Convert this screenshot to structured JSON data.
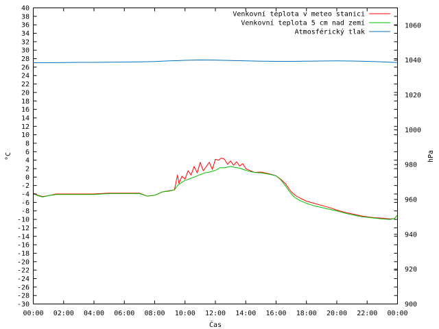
{
  "chart_data": {
    "type": "line",
    "xlabel": "Čas",
    "ylabel_left": "°C",
    "ylabel_right": "hPa",
    "x_ticks": [
      "00:00",
      "02:00",
      "04:00",
      "06:00",
      "08:00",
      "10:00",
      "12:00",
      "14:00",
      "16:00",
      "18:00",
      "20:00",
      "22:00",
      "00:00"
    ],
    "xlim_hours": [
      0,
      24
    ],
    "ylim_left": [
      -30,
      40
    ],
    "ylim_right": [
      900,
      1070
    ],
    "left_ticks": [
      40,
      38,
      36,
      34,
      32,
      30,
      28,
      26,
      24,
      22,
      20,
      18,
      16,
      14,
      12,
      10,
      8,
      6,
      4,
      2,
      0,
      -2,
      -4,
      -6,
      -8,
      -10,
      -12,
      -14,
      -16,
      -18,
      -20,
      -22,
      -24,
      -26,
      -28,
      -30
    ],
    "right_ticks": [
      1060,
      1040,
      1020,
      1000,
      980,
      960,
      940,
      920,
      900
    ],
    "legend_position": "top-right",
    "grid": false,
    "series": [
      {
        "name": "Venkovní teplota v meteo stanici",
        "color": "#ff0000",
        "axis": "left",
        "x": [
          0,
          0.3,
          0.6,
          1,
          1.5,
          2,
          3,
          4,
          5,
          6,
          7,
          7.5,
          8,
          8.5,
          9,
          9.3,
          9.5,
          9.6,
          9.8,
          10,
          10.2,
          10.4,
          10.6,
          10.8,
          11,
          11.2,
          11.4,
          11.6,
          11.8,
          12,
          12.2,
          12.4,
          12.6,
          12.8,
          13,
          13.2,
          13.4,
          13.6,
          13.8,
          14,
          14.3,
          14.6,
          15,
          15.5,
          16,
          16.3,
          16.6,
          17,
          17.3,
          17.6,
          18,
          18.5,
          19,
          19.5,
          20,
          20.5,
          21,
          21.5,
          22,
          22.5,
          23,
          23.5,
          23.8,
          24
        ],
        "y": [
          -3.8,
          -4.3,
          -4.6,
          -4.4,
          -4.0,
          -4.0,
          -4.0,
          -4.0,
          -3.8,
          -3.8,
          -3.8,
          -4.5,
          -4.3,
          -3.5,
          -3.2,
          -3.0,
          0.5,
          -1.5,
          0.2,
          -0.5,
          1.5,
          0.5,
          2.5,
          1.0,
          3.5,
          1.5,
          2.5,
          3.5,
          1.8,
          4.2,
          4.0,
          4.5,
          4.2,
          3.0,
          3.8,
          2.8,
          3.6,
          2.6,
          3.2,
          2.0,
          1.5,
          1.1,
          1.2,
          0.8,
          0.3,
          -0.5,
          -1.5,
          -3.5,
          -4.4,
          -5.0,
          -5.7,
          -6.2,
          -6.7,
          -7.2,
          -7.8,
          -8.3,
          -8.7,
          -9.1,
          -9.4,
          -9.6,
          -9.7,
          -9.9,
          -9.8,
          -9.0
        ]
      },
      {
        "name": "Venkovní teplota 5 cm nad zemí",
        "color": "#00c000",
        "axis": "left",
        "x": [
          0,
          0.3,
          0.6,
          1,
          1.5,
          2,
          3,
          4,
          5,
          6,
          7,
          7.5,
          8,
          8.5,
          9,
          9.3,
          9.5,
          9.8,
          10,
          10.3,
          10.6,
          11,
          11.3,
          11.6,
          12,
          12.3,
          12.6,
          13,
          13.3,
          13.6,
          14,
          14.3,
          14.6,
          15,
          15.5,
          16,
          16.3,
          16.6,
          17,
          17.3,
          17.6,
          18,
          18.5,
          19,
          19.5,
          20,
          20.5,
          21,
          21.5,
          22,
          22.5,
          23,
          23.5,
          23.8,
          24
        ],
        "y": [
          -3.9,
          -4.4,
          -4.7,
          -4.4,
          -4.1,
          -4.1,
          -4.1,
          -4.1,
          -3.9,
          -3.9,
          -3.9,
          -4.5,
          -4.3,
          -3.5,
          -3.3,
          -3.0,
          -2.0,
          -1.2,
          -0.8,
          -0.4,
          0.0,
          0.6,
          1.0,
          1.2,
          1.6,
          2.2,
          2.2,
          2.5,
          2.3,
          2.1,
          1.6,
          1.3,
          1.1,
          1.0,
          0.7,
          0.3,
          -0.6,
          -2.0,
          -4.0,
          -5.0,
          -5.6,
          -6.2,
          -6.8,
          -7.2,
          -7.6,
          -8.0,
          -8.5,
          -8.9,
          -9.3,
          -9.5,
          -9.7,
          -9.9,
          -10.0,
          -9.8,
          -9.0
        ]
      },
      {
        "name": "Atmosférický tlak",
        "color": "#0070c0",
        "axis": "right",
        "x": [
          0,
          1,
          2,
          3,
          4,
          5,
          6,
          7,
          8,
          9,
          10,
          11,
          12,
          13,
          14,
          15,
          16,
          17,
          18,
          19,
          20,
          21,
          22,
          23,
          24
        ],
        "y": [
          1038.5,
          1038.5,
          1038.6,
          1038.7,
          1038.7,
          1038.8,
          1038.9,
          1039.0,
          1039.2,
          1039.6,
          1039.9,
          1040.1,
          1040.0,
          1039.8,
          1039.6,
          1039.4,
          1039.3,
          1039.3,
          1039.4,
          1039.5,
          1039.6,
          1039.5,
          1039.3,
          1039.0,
          1038.6
        ]
      }
    ]
  }
}
